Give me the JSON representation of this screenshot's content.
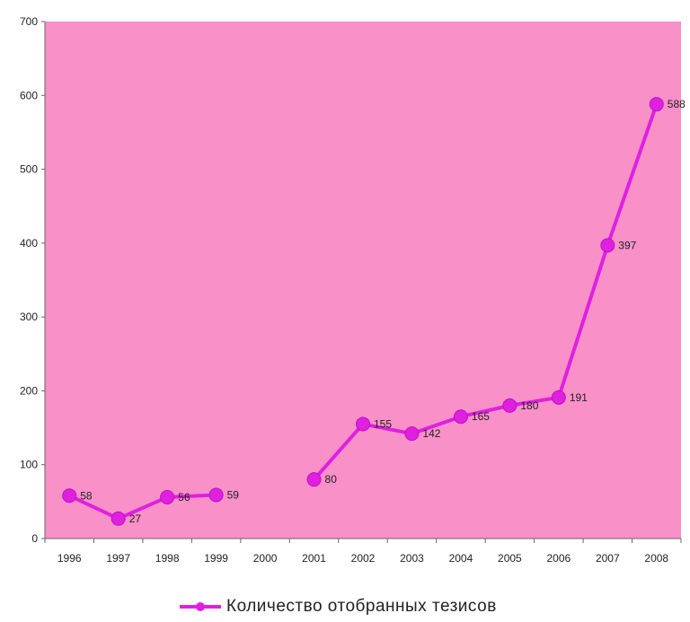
{
  "chart_data": {
    "type": "line",
    "x": [
      "1996",
      "1997",
      "1998",
      "1999",
      "2000",
      "2001",
      "2002",
      "2003",
      "2004",
      "2005",
      "2006",
      "2007",
      "2008"
    ],
    "series": [
      {
        "name": "Количество отобранных тезисов",
        "values": [
          58,
          27,
          56,
          59,
          null,
          80,
          155,
          142,
          165,
          180,
          191,
          397,
          588
        ],
        "labels": [
          "58",
          "27",
          "56",
          "59",
          "",
          "80",
          "155",
          "142",
          "165",
          "180",
          "191",
          "397",
          "588"
        ],
        "color": "#e020e0"
      }
    ],
    "ylim": [
      0,
      700
    ],
    "yticks": [
      0,
      100,
      200,
      300,
      400,
      500,
      600,
      700
    ],
    "plot_background": "#f990c8",
    "grid": false,
    "legend_position": "bottom"
  }
}
